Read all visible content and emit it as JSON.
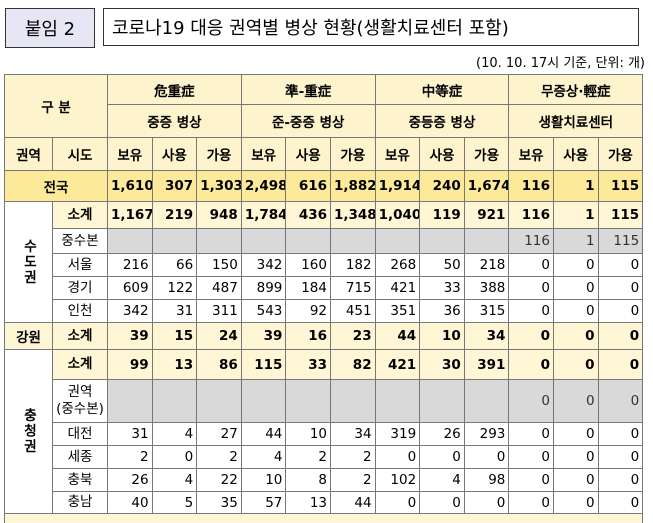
{
  "header": {
    "label": "붙임 2",
    "title": "코로나19 대응 권역별 병상 현황(생활치료센터 포함)",
    "note": "(10. 10. 17시 기준, 단위: 개)"
  },
  "table": {
    "corner": "구 분",
    "region_header": "권역",
    "city_header": "시도",
    "groups": [
      {
        "name": "危重症",
        "sub": "중증 병상"
      },
      {
        "name": "準-重症",
        "sub": "준-중증 병상"
      },
      {
        "name": "中等症",
        "sub": "중등증 병상"
      },
      {
        "name": "무증상·輕症",
        "sub": "생활치료센터"
      }
    ],
    "metrics": [
      "보유",
      "사용",
      "가용"
    ],
    "total": {
      "label": "전국",
      "values": [
        "1,610",
        "307",
        "1,303",
        "2,498",
        "616",
        "1,882",
        "1,914",
        "240",
        "1,674",
        "116",
        "1",
        "115"
      ]
    },
    "regions": [
      {
        "name": "수도권",
        "rows": [
          {
            "label": "소계",
            "values": [
              "1,167",
              "219",
              "948",
              "1,784",
              "436",
              "1,348",
              "1,040",
              "119",
              "921",
              "116",
              "1",
              "115"
            ]
          },
          {
            "label": "중수본",
            "values": [
              null,
              null,
              null,
              null,
              null,
              null,
              null,
              null,
              null,
              "116",
              "1",
              "115"
            ]
          },
          {
            "label": "서울",
            "values": [
              "216",
              "66",
              "150",
              "342",
              "160",
              "182",
              "268",
              "50",
              "218",
              "0",
              "0",
              "0"
            ]
          },
          {
            "label": "경기",
            "values": [
              "609",
              "122",
              "487",
              "899",
              "184",
              "715",
              "421",
              "33",
              "388",
              "0",
              "0",
              "0"
            ]
          },
          {
            "label": "인천",
            "values": [
              "342",
              "31",
              "311",
              "543",
              "92",
              "451",
              "351",
              "36",
              "315",
              "0",
              "0",
              "0"
            ]
          }
        ]
      },
      {
        "name": "강원",
        "rows": [
          {
            "label": "소계",
            "values": [
              "39",
              "15",
              "24",
              "39",
              "16",
              "23",
              "44",
              "10",
              "34",
              "0",
              "0",
              "0"
            ]
          }
        ]
      },
      {
        "name": "충청권",
        "rows": [
          {
            "label": "소계",
            "values": [
              "99",
              "13",
              "86",
              "115",
              "33",
              "82",
              "421",
              "30",
              "391",
              "0",
              "0",
              "0"
            ]
          },
          {
            "label": "권역\n(중수본)",
            "values": [
              null,
              null,
              null,
              null,
              null,
              null,
              null,
              null,
              null,
              "0",
              "0",
              "0"
            ]
          },
          {
            "label": "대전",
            "values": [
              "31",
              "4",
              "27",
              "44",
              "10",
              "34",
              "319",
              "26",
              "293",
              "0",
              "0",
              "0"
            ]
          },
          {
            "label": "세종",
            "values": [
              "2",
              "0",
              "2",
              "4",
              "2",
              "2",
              "0",
              "0",
              "0",
              "0",
              "0",
              "0"
            ]
          },
          {
            "label": "충북",
            "values": [
              "26",
              "4",
              "22",
              "10",
              "8",
              "2",
              "102",
              "4",
              "98",
              "0",
              "0",
              "0"
            ]
          },
          {
            "label": "충남",
            "values": [
              "40",
              "5",
              "35",
              "57",
              "13",
              "44",
              "0",
              "0",
              "0",
              "0",
              "0",
              "0"
            ]
          }
        ]
      }
    ]
  }
}
